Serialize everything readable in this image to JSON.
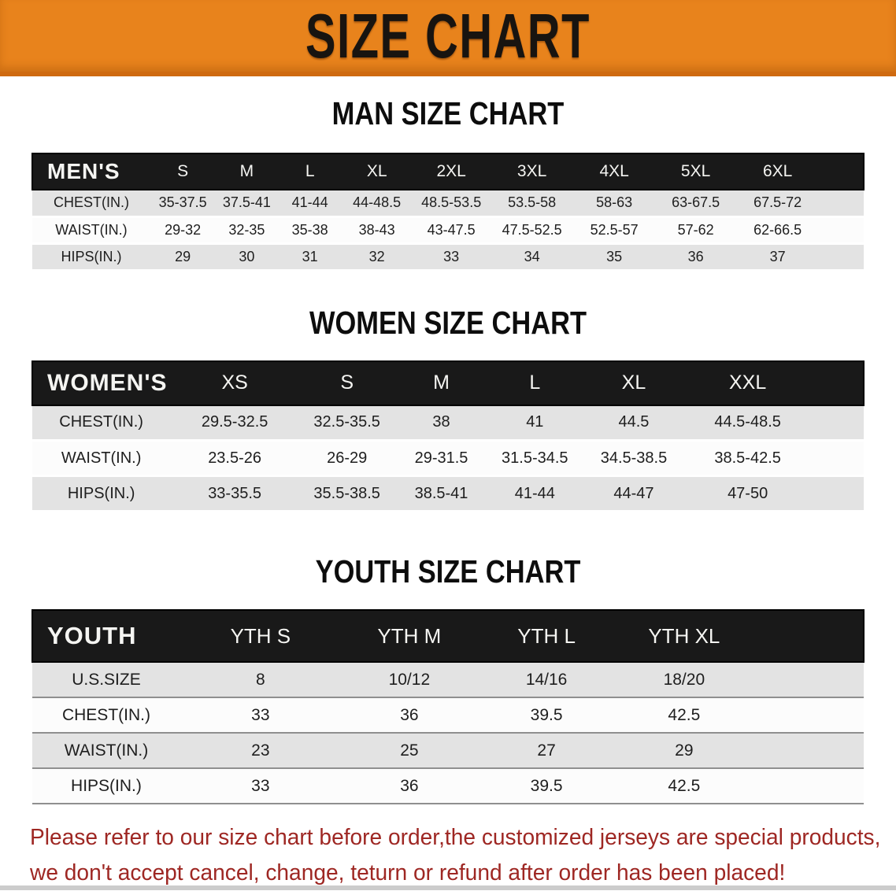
{
  "banner": {
    "title": "SIZE CHART",
    "bg_color": "#e8831c",
    "text_color": "#181410"
  },
  "sections": [
    {
      "heading": "MAN SIZE CHART",
      "table": {
        "header_label": "MEN'S",
        "columns": [
          "S",
          "M",
          "L",
          "XL",
          "2XL",
          "3XL",
          "4XL",
          "5XL",
          "6XL"
        ],
        "rows": [
          {
            "label": "CHEST(IN.)",
            "values": [
              "35-37.5",
              "37.5-41",
              "41-44",
              "44-48.5",
              "48.5-53.5",
              "53.5-58",
              "58-63",
              "63-67.5",
              "67.5-72"
            ]
          },
          {
            "label": "WAIST(IN.)",
            "values": [
              "29-32",
              "32-35",
              "35-38",
              "38-43",
              "43-47.5",
              "47.5-52.5",
              "52.5-57",
              "57-62",
              "62-66.5"
            ]
          },
          {
            "label": "HIPS(IN.)",
            "values": [
              "29",
              "30",
              "31",
              "32",
              "33",
              "34",
              "35",
              "36",
              "37"
            ]
          }
        ]
      }
    },
    {
      "heading": "WOMEN SIZE CHART",
      "table": {
        "header_label": "WOMEN'S",
        "columns": [
          "XS",
          "S",
          "M",
          "L",
          "XL",
          "XXL"
        ],
        "rows": [
          {
            "label": "CHEST(IN.)",
            "values": [
              "29.5-32.5",
              "32.5-35.5",
              "38",
              "41",
              "44.5",
              "44.5-48.5"
            ]
          },
          {
            "label": "WAIST(IN.)",
            "values": [
              "23.5-26",
              "26-29",
              "29-31.5",
              "31.5-34.5",
              "34.5-38.5",
              "38.5-42.5"
            ]
          },
          {
            "label": "HIPS(IN.)",
            "values": [
              "33-35.5",
              "35.5-38.5",
              "38.5-41",
              "41-44",
              "44-47",
              "47-50"
            ]
          }
        ]
      }
    },
    {
      "heading": "YOUTH SIZE CHART",
      "table": {
        "header_label": "YOUTH",
        "columns": [
          "YTH S",
          "YTH M",
          "YTH L",
          "YTH XL"
        ],
        "rows": [
          {
            "label": "U.S.SIZE",
            "values": [
              "8",
              "10/12",
              "14/16",
              "18/20"
            ]
          },
          {
            "label": "CHEST(IN.)",
            "values": [
              "33",
              "36",
              "39.5",
              "42.5"
            ]
          },
          {
            "label": "WAIST(IN.)",
            "values": [
              "23",
              "25",
              "27",
              "29"
            ]
          },
          {
            "label": "HIPS(IN.)",
            "values": [
              "33",
              "36",
              "39.5",
              "42.5"
            ]
          }
        ]
      }
    }
  ],
  "disclaimer": {
    "line1": "Please refer to our size chart before order,the customized jerseys are special products,",
    "line2": "we don't accept cancel, change, teturn or refund after order has been placed!",
    "color": "#9e2723"
  }
}
